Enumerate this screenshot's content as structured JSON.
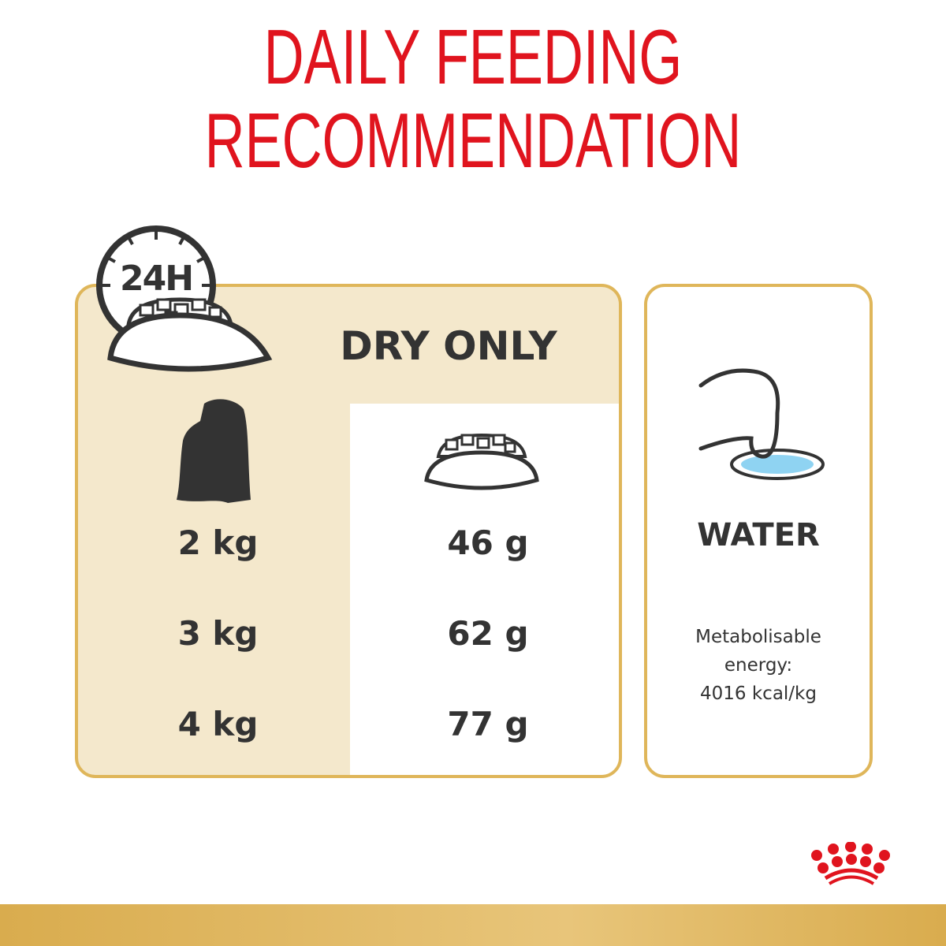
{
  "title": {
    "line1": "DAILY FEEDING",
    "line2": "RECOMMENDATION"
  },
  "feeding": {
    "clock_label": "24H",
    "mode": "DRY ONLY",
    "rows": [
      {
        "weight": "2 kg",
        "amount": "46 g"
      },
      {
        "weight": "3 kg",
        "amount": "62 g"
      },
      {
        "weight": "4 kg",
        "amount": "77 g"
      }
    ]
  },
  "water": {
    "label": "WATER",
    "energy_line1": "Metabolisable",
    "energy_line2": "energy:",
    "energy_line3": "4016 kcal/kg"
  },
  "colors": {
    "brand_red": "#e0141e",
    "gold": "#dfb65a",
    "cream": "#f4e8cc",
    "text": "#333333",
    "water_blue": "#8fd3f2"
  },
  "logo": {
    "name": "crown-logo"
  }
}
